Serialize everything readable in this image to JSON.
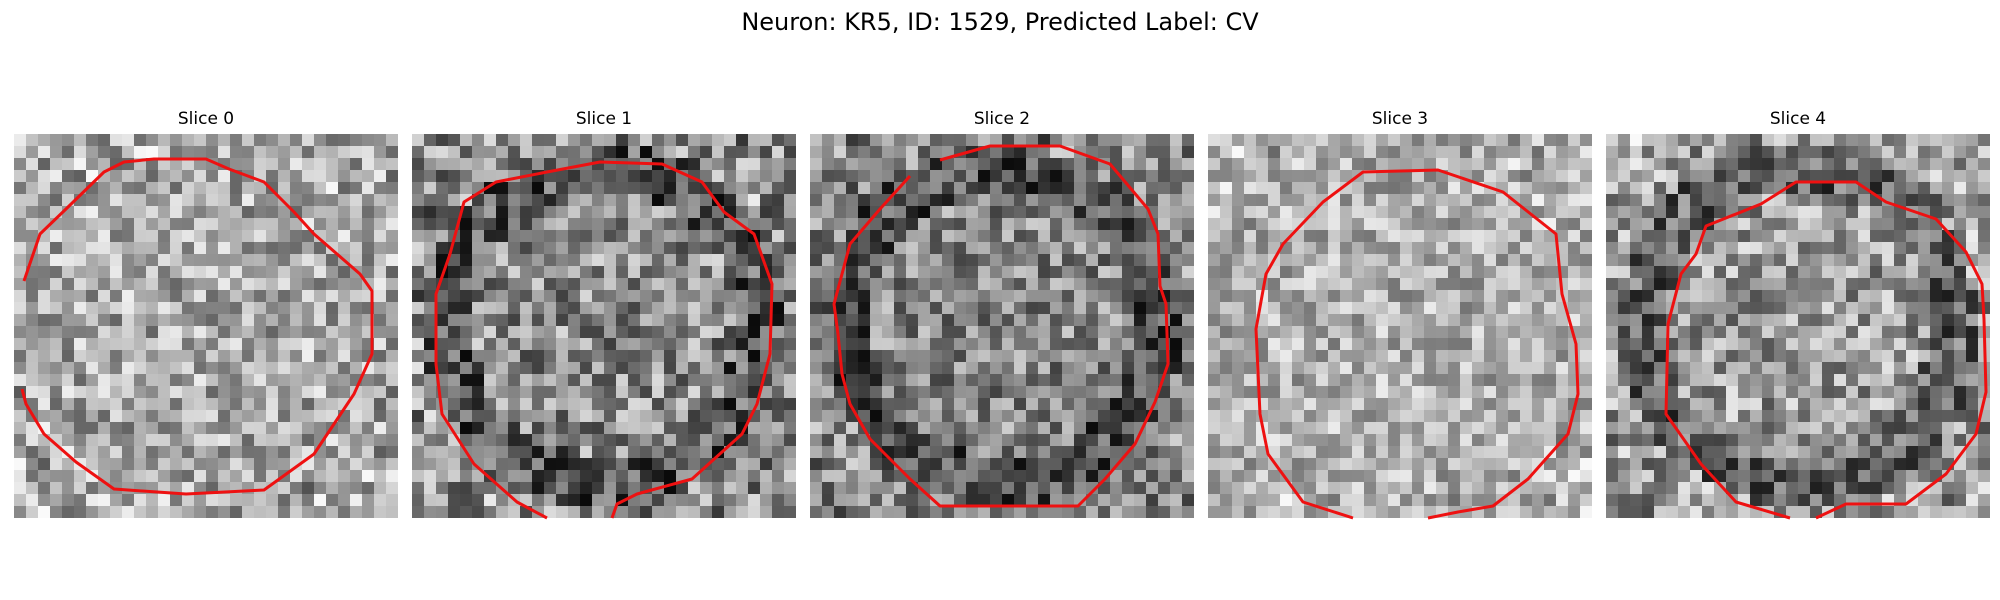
{
  "figure": {
    "title": "Neuron: KR5, ID: 1529, Predicted Label: CV"
  },
  "panels": [
    {
      "title": "Slice 0"
    },
    {
      "title": "Slice 1"
    },
    {
      "title": "Slice 2"
    },
    {
      "title": "Slice 3"
    },
    {
      "title": "Slice 4"
    }
  ],
  "style": {
    "contour_color": "#ee1111",
    "colormap": "grayscale"
  }
}
